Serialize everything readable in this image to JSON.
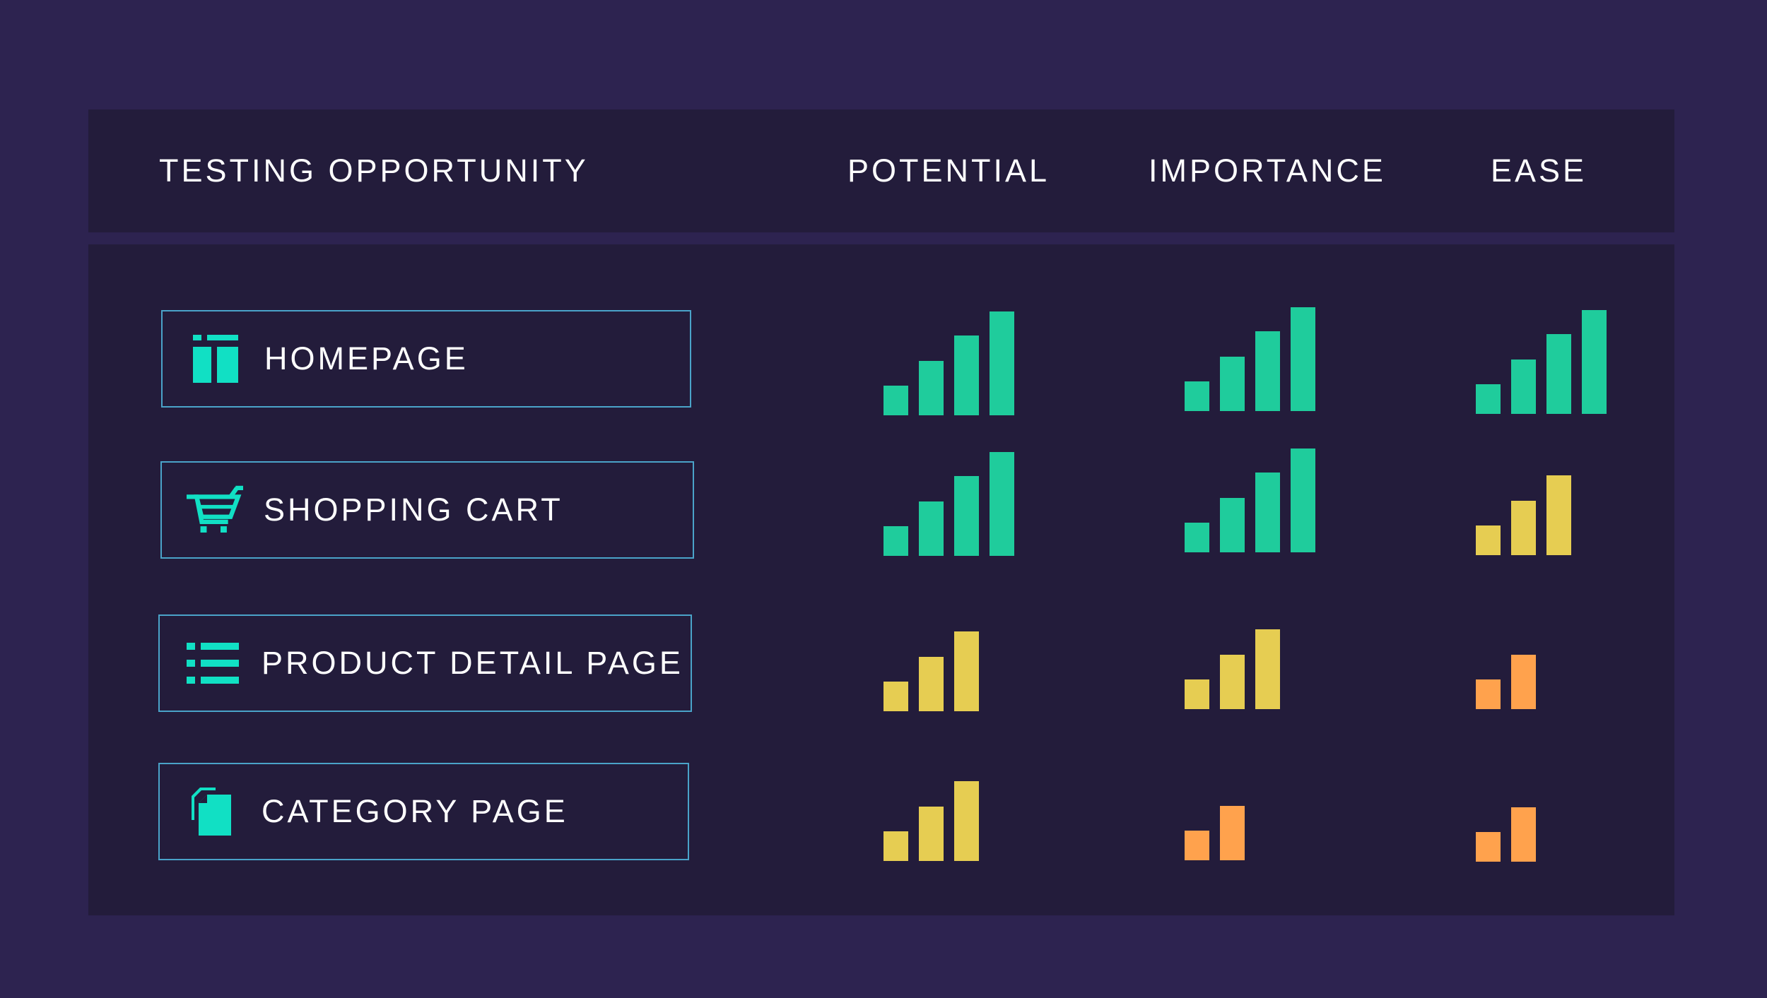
{
  "headers": {
    "opportunity": "TESTING OPPORTUNITY",
    "potential": "POTENTIAL",
    "importance": "IMPORTANCE",
    "ease": "EASE"
  },
  "colors": {
    "high": "#1fcc9c",
    "medium": "#e6cd52",
    "low": "#ffa24d",
    "accent_icon": "#11e0c4",
    "border": "#4aa3c9"
  },
  "rows": [
    {
      "label": "HOMEPAGE",
      "icon": "layout-icon",
      "potential": 4,
      "importance": 4,
      "ease": 4
    },
    {
      "label": "SHOPPING CART",
      "icon": "cart-icon",
      "potential": 4,
      "importance": 4,
      "ease": 3
    },
    {
      "label": "PRODUCT DETAIL PAGE",
      "icon": "list-icon",
      "potential": 3,
      "importance": 3,
      "ease": 2
    },
    {
      "label": "CATEGORY PAGE",
      "icon": "document-icon",
      "potential": 3,
      "importance": 2,
      "ease": 2
    }
  ]
}
